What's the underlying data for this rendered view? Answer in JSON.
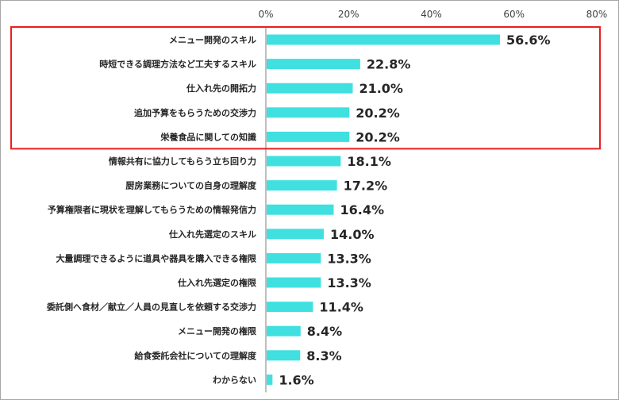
{
  "colors": {
    "bar": "#40e0e0",
    "highlight_border": "#e82020",
    "axis": "#7f7f7f",
    "text": "#262626"
  },
  "chart_data": {
    "type": "bar",
    "orientation": "horizontal",
    "xlim": [
      0,
      80
    ],
    "x_ticks": [
      "0%",
      "20%",
      "40%",
      "60%",
      "80%"
    ],
    "grid": false,
    "categories": [
      "メニュー開発のスキル",
      "時短できる調理方法など工夫するスキル",
      "仕入れ先の開拓力",
      "追加予算をもらうための交渉力",
      "栄養食品に関しての知識",
      "情報共有に協力してもらう立ち回り力",
      "厨房業務についての自身の理解度",
      "予算権限者に現状を理解してもらうための情報発信力",
      "仕入れ先選定のスキル",
      "大量調理できるように道具や器具を購入できる権限",
      "仕入れ先選定の権限",
      "委託側へ食材／献立／人員の見直しを依頼する交渉力",
      "メニュー開発の権限",
      "給食委託会社についての理解度",
      "わからない"
    ],
    "values": [
      56.6,
      22.8,
      21.0,
      20.2,
      20.2,
      18.1,
      17.2,
      16.4,
      14.0,
      13.3,
      13.3,
      11.4,
      8.4,
      8.3,
      1.6
    ],
    "value_labels": [
      "56.6%",
      "22.8%",
      "21.0%",
      "20.2%",
      "20.2%",
      "18.1%",
      "17.2%",
      "16.4%",
      "14.0%",
      "13.3%",
      "13.3%",
      "11.4%",
      "8.4%",
      "8.3%",
      "1.6%"
    ],
    "highlighted_range": [
      0,
      4
    ]
  }
}
